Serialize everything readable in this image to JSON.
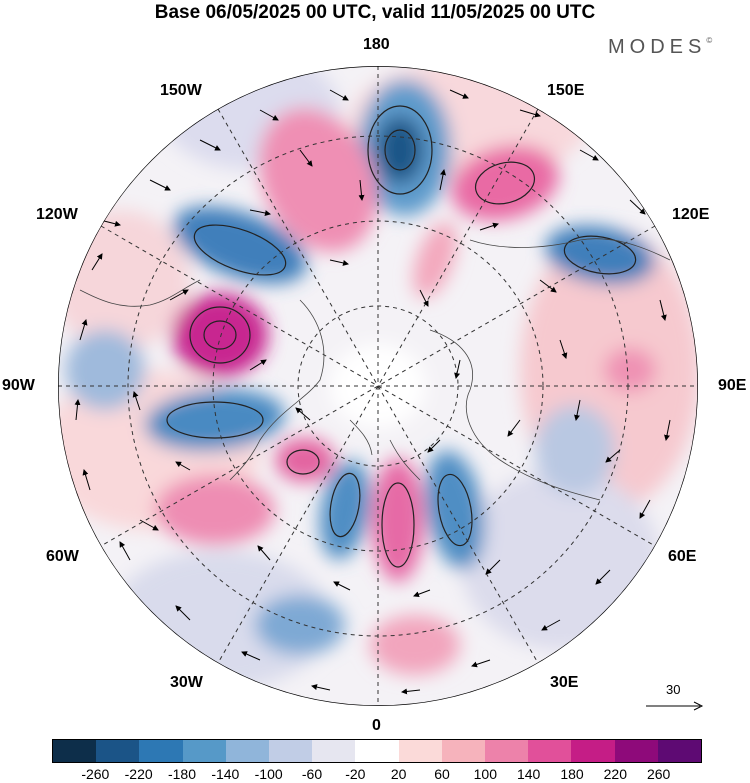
{
  "header": {
    "title": "Base 06/05/2025 00 UTC, valid 11/05/2025 00 UTC",
    "brand": "MODES",
    "brand_mark": "©"
  },
  "map": {
    "projection": "north-polar-stereographic",
    "longitude_labels": {
      "top": "180",
      "top_left": "150W",
      "top_right": "150E",
      "upper_left": "120W",
      "upper_right": "120E",
      "left": "90W",
      "right": "90E",
      "lower_left": "60W",
      "lower_right": "60E",
      "bottom_left": "30W",
      "bottom_right": "30E",
      "bottom": "0"
    },
    "reference_vector_label": "30"
  },
  "colorbar": {
    "colors": [
      "#0d2e4a",
      "#1b5487",
      "#2d78b4",
      "#5699c8",
      "#90b5da",
      "#c1cde6",
      "#e6e6f0",
      "#ffffff",
      "#fbdad9",
      "#f6b3bc",
      "#ed82aa",
      "#e1509a",
      "#c51d86",
      "#8e0a7a",
      "#5e0a73"
    ],
    "tick_labels": [
      "-260",
      "-220",
      "-180",
      "-140",
      "-100",
      "-60",
      "-20",
      "20",
      "60",
      "100",
      "140",
      "180",
      "220",
      "260"
    ]
  }
}
